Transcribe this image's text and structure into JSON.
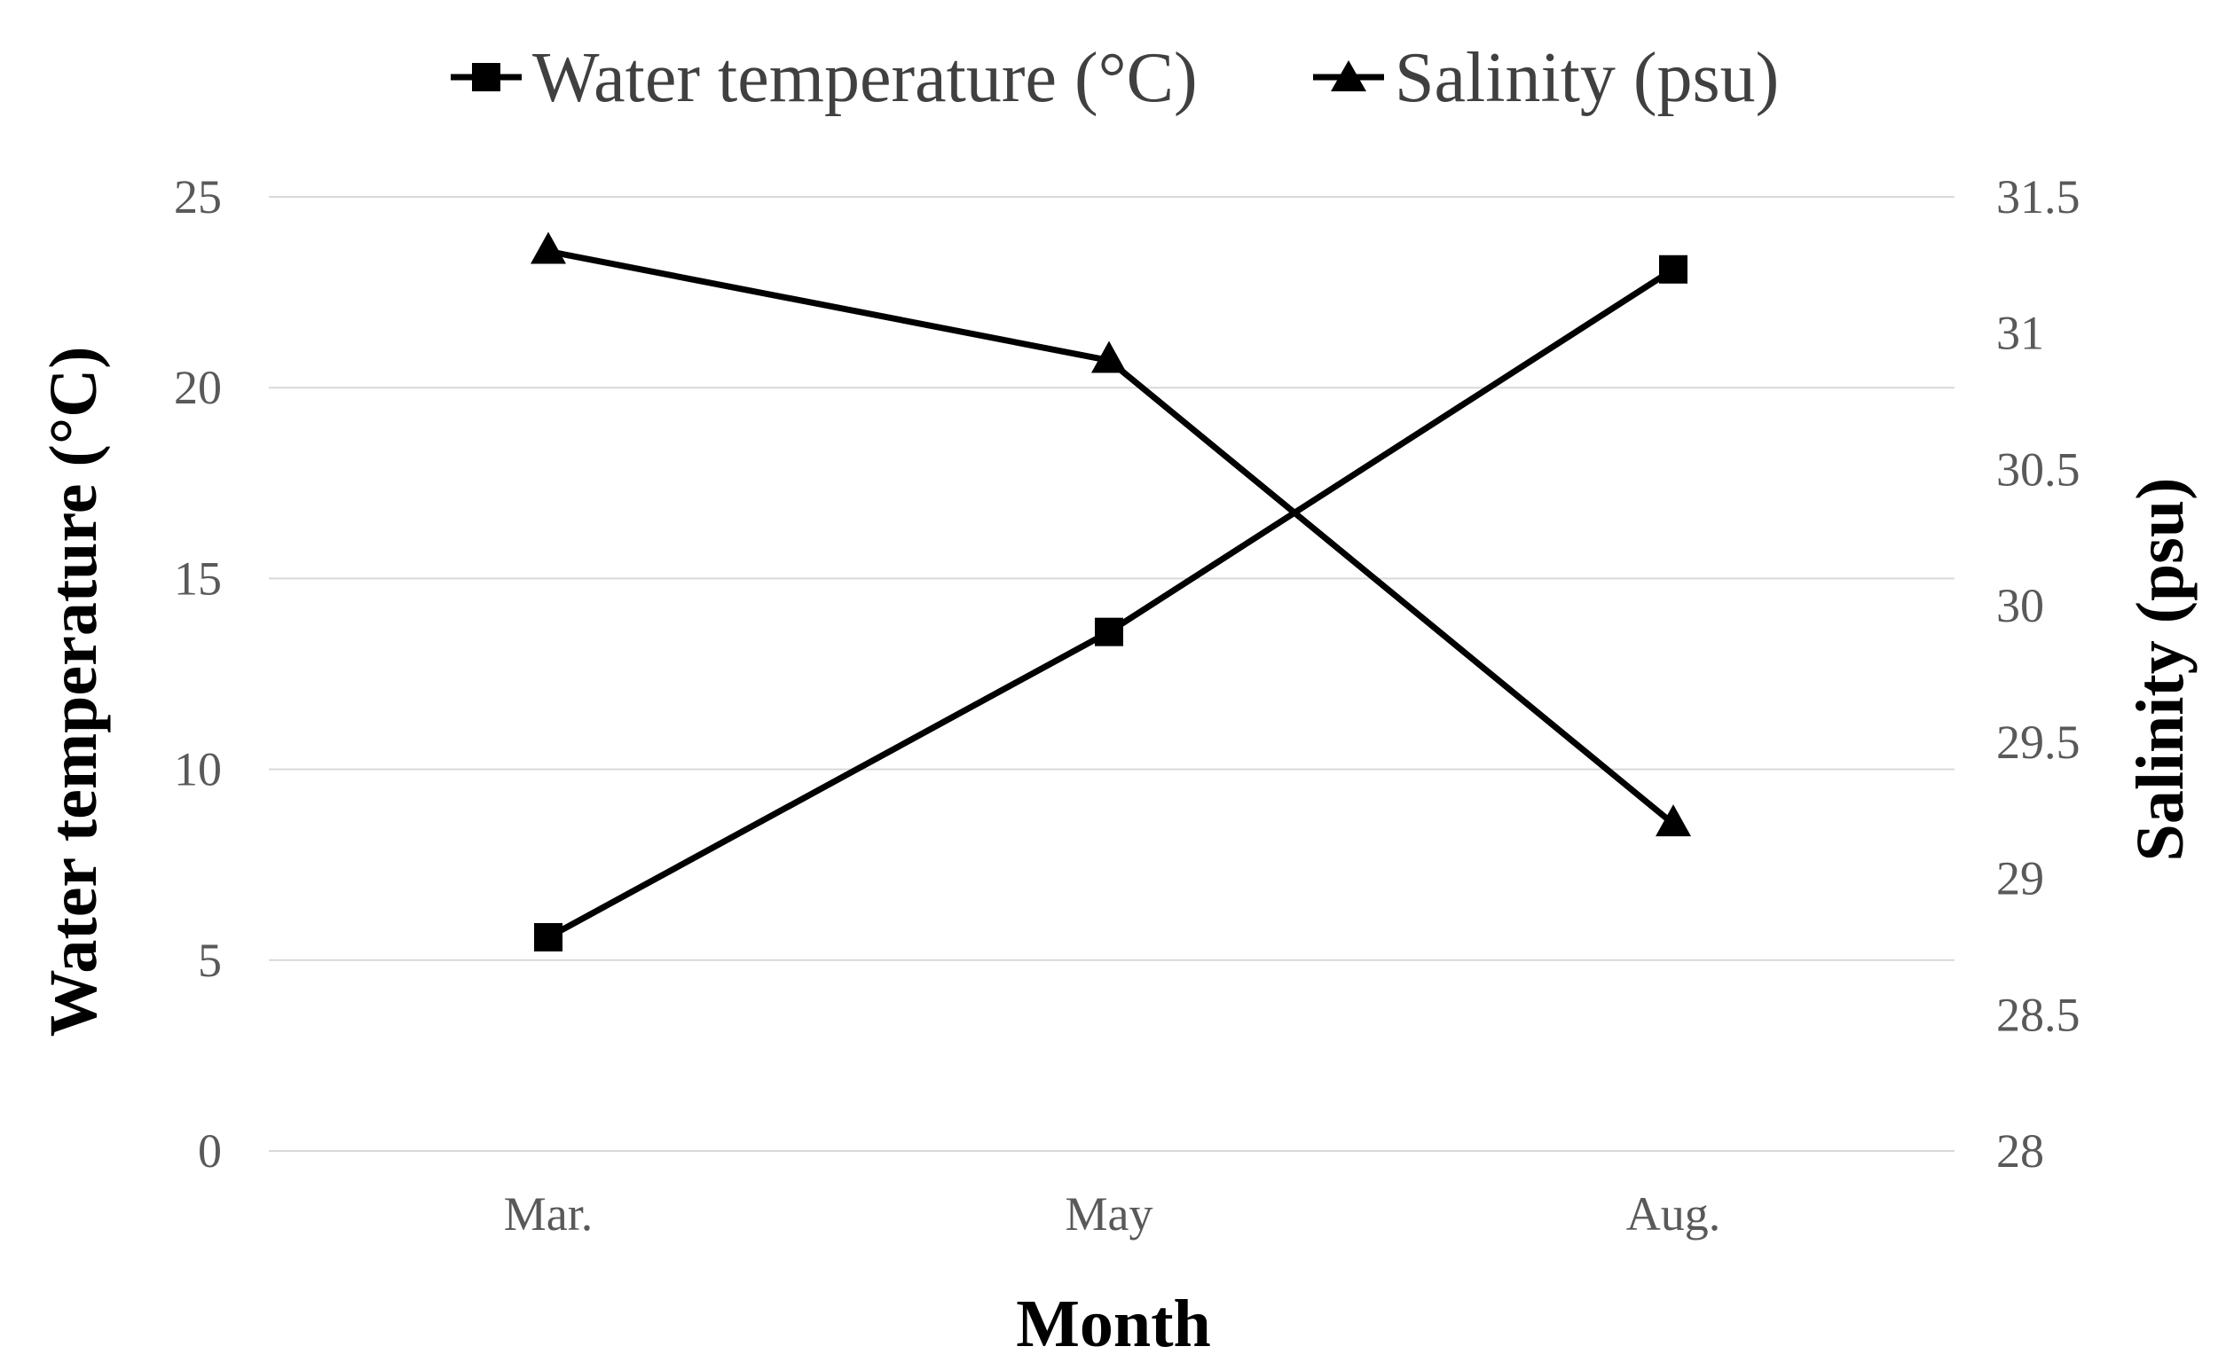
{
  "chart_data": {
    "type": "line",
    "categories": [
      "Mar.",
      "May",
      "Aug."
    ],
    "xlabel": "Month",
    "ylabel": "Water temperature (°C)",
    "y2label": "Salinity (psu)",
    "ylim": [
      0,
      25
    ],
    "y2lim": [
      28,
      31.5
    ],
    "yticks": [
      "0",
      "5",
      "10",
      "15",
      "20",
      "25"
    ],
    "y2ticks": [
      "28",
      "28.5",
      "29",
      "29.5",
      "30",
      "30.5",
      "31",
      "31.5"
    ],
    "grid": true,
    "legend_position": "top-center",
    "series": [
      {
        "name": "Water temperature (°C)",
        "axis": "left",
        "marker": "square",
        "values": [
          5.6,
          13.6,
          23.1
        ]
      },
      {
        "name": "Salinity (psu)",
        "axis": "right",
        "marker": "triangle",
        "values": [
          31.3,
          30.9,
          29.2
        ]
      }
    ],
    "colors": {
      "line": "#000000",
      "grid": "#d9d9d9",
      "tick": "#595959"
    }
  }
}
